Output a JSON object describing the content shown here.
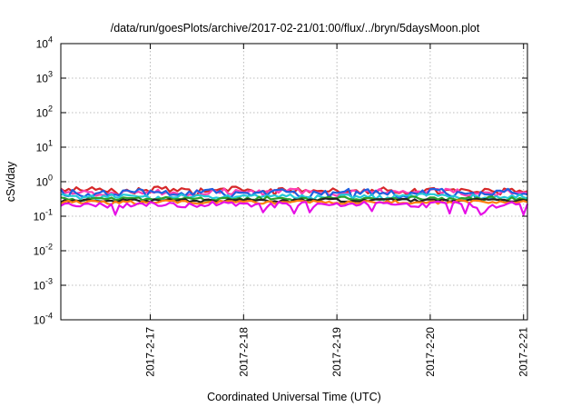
{
  "chart_data": {
    "type": "line",
    "title": "/data/run/goesPlots/archive/2017-02-21/01:00/flux/../bryn/5daysMoon.plot",
    "xlabel": "Coordinated Universal Time (UTC)",
    "ylabel": "cSv/day",
    "y_scale": "log",
    "ylim": [
      0.0001,
      10000
    ],
    "y_ticks": [
      {
        "value": 0.0001,
        "base": "10",
        "exp": "-4"
      },
      {
        "value": 0.001,
        "base": "10",
        "exp": "-3"
      },
      {
        "value": 0.01,
        "base": "10",
        "exp": "-2"
      },
      {
        "value": 0.1,
        "base": "10",
        "exp": "-1"
      },
      {
        "value": 1,
        "base": "10",
        "exp": "0"
      },
      {
        "value": 10,
        "base": "10",
        "exp": "1"
      },
      {
        "value": 100,
        "base": "10",
        "exp": "2"
      },
      {
        "value": 1000,
        "base": "10",
        "exp": "3"
      },
      {
        "value": 10000,
        "base": "10",
        "exp": "4"
      }
    ],
    "xlim": [
      "2017-02-16 01:00",
      "2017-02-21 01:00"
    ],
    "x_ticks": [
      {
        "value": "2017-02-17 00:00",
        "label": "2017-2-17"
      },
      {
        "value": "2017-02-18 00:00",
        "label": "2017-2-18"
      },
      {
        "value": "2017-02-19 00:00",
        "label": "2017-2-19"
      },
      {
        "value": "2017-02-20 00:00",
        "label": "2017-2-20"
      },
      {
        "value": "2017-02-21 00:00",
        "label": "2017-2-21"
      }
    ],
    "grid": true,
    "legend": "none",
    "sample_interval_minutes": 60,
    "series": [
      {
        "color": "#d62728",
        "base": 0.56,
        "amplitude": 0.12,
        "dips": []
      },
      {
        "color": "#ff3fb5",
        "base": 0.5,
        "amplitude": 0.1,
        "dips": []
      },
      {
        "color": "#1f5fe0",
        "base": 0.47,
        "amplitude": 0.12,
        "dips": [
          {
            "time": "2017-02-19 04:00",
            "value": 0.3
          },
          {
            "time": "2017-02-20 12:00",
            "value": 0.28
          }
        ]
      },
      {
        "color": "#24c8d8",
        "base": 0.37,
        "amplitude": 0.06,
        "dips": []
      },
      {
        "color": "#2ca02c",
        "base": 0.32,
        "amplitude": 0.04,
        "dips": []
      },
      {
        "color": "#222222",
        "base": 0.29,
        "amplitude": 0.03,
        "dips": []
      },
      {
        "color": "#ff7f0e",
        "base": 0.255,
        "amplitude": 0.03,
        "dips": []
      },
      {
        "color": "#e60fe6",
        "base": 0.22,
        "amplitude": 0.04,
        "dips": [
          {
            "time": "2017-02-16 15:00",
            "value": 0.11
          },
          {
            "time": "2017-02-18 05:00",
            "value": 0.13
          },
          {
            "time": "2017-02-18 13:00",
            "value": 0.12
          },
          {
            "time": "2017-02-18 17:00",
            "value": 0.13
          },
          {
            "time": "2017-02-19 09:00",
            "value": 0.14
          },
          {
            "time": "2017-02-20 05:00",
            "value": 0.12
          },
          {
            "time": "2017-02-20 09:00",
            "value": 0.12
          },
          {
            "time": "2017-02-20 13:00",
            "value": 0.11
          },
          {
            "time": "2017-02-20 14:00",
            "value": 0.13
          },
          {
            "time": "2017-02-21 00:00",
            "value": 0.11
          }
        ]
      }
    ]
  }
}
